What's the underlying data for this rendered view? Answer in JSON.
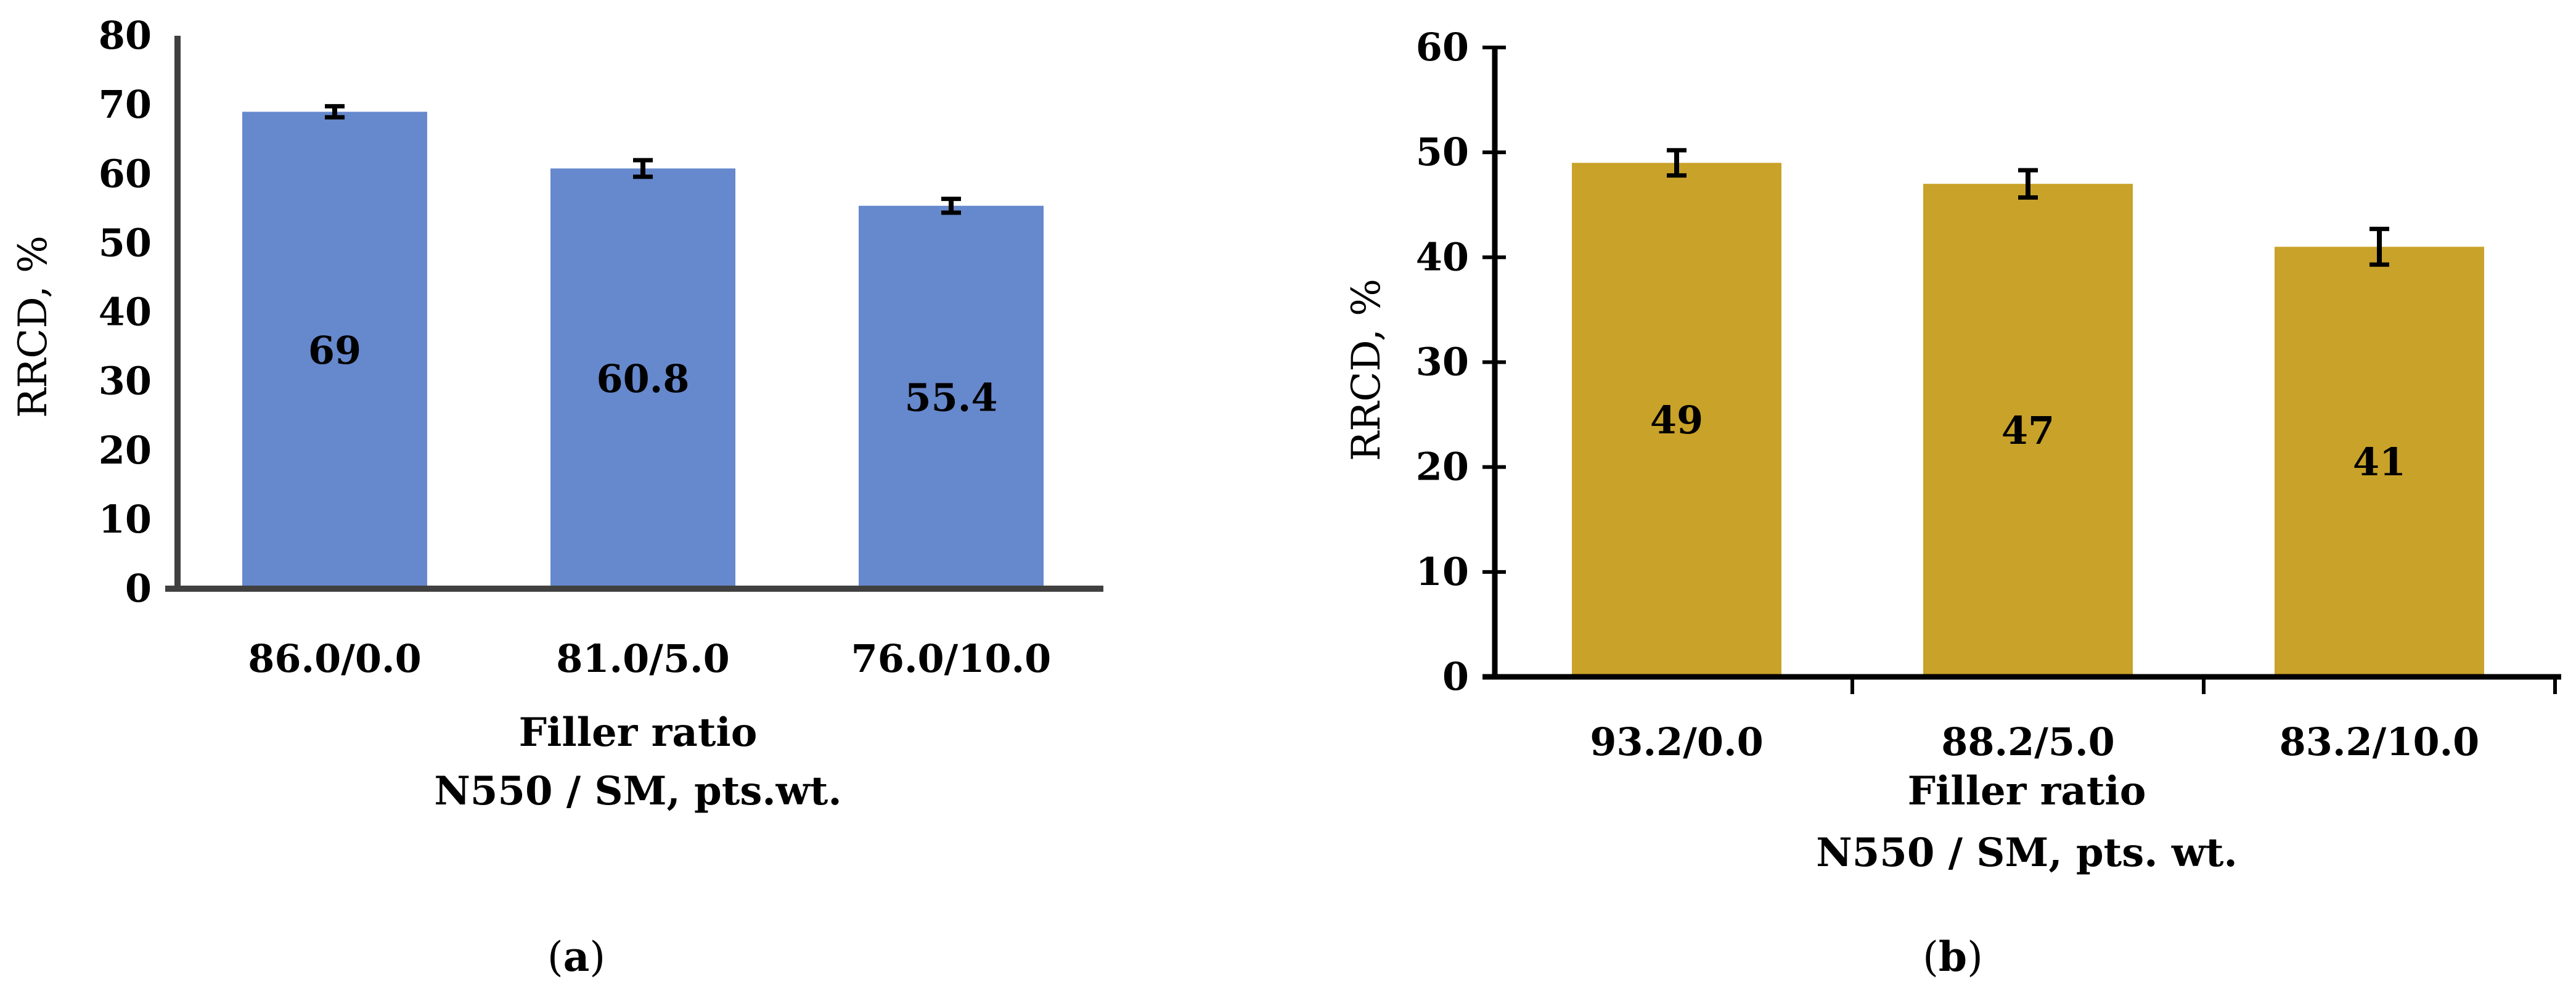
{
  "panel_labels": [
    "a",
    "b"
  ],
  "chart_data": [
    {
      "type": "bar",
      "panel": "a",
      "categories": [
        "86.0/0.0",
        "81.0/5.0",
        "76.0/10.0"
      ],
      "values": [
        69,
        60.8,
        55.4
      ],
      "value_labels": [
        "69",
        "60.8",
        "55.4"
      ],
      "error": [
        0.8,
        1.2,
        1.0
      ],
      "ylabel": "RRCD, %",
      "xlabel": [
        "Filler ratio",
        "N550 / SM, pts.wt."
      ],
      "ylim": [
        0,
        80
      ],
      "yticks": [
        0,
        10,
        20,
        30,
        40,
        50,
        60,
        70,
        80
      ],
      "bar_color": "#6688cc",
      "grid": false
    },
    {
      "type": "bar",
      "panel": "b",
      "categories": [
        "93.2/0.0",
        "88.2/5.0",
        "83.2/10.0"
      ],
      "values": [
        49,
        47,
        41
      ],
      "value_labels": [
        "49",
        "47",
        "41"
      ],
      "error": [
        1.2,
        1.3,
        1.7
      ],
      "ylabel": "RRCD, %",
      "xlabel": [
        "Filler ratio",
        "N550 / SM, pts. wt."
      ],
      "ylim": [
        0,
        60
      ],
      "yticks": [
        0,
        10,
        20,
        30,
        40,
        50,
        60
      ],
      "bar_color": "#c9a229",
      "grid": false
    }
  ]
}
